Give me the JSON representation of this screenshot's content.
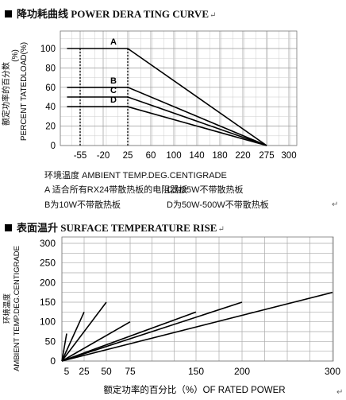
{
  "titles": {
    "derating": "降功耗曲线 POWER DERA TING CURVE",
    "surface": "表面温升 SURFACE TEMPERATURE RISE"
  },
  "notes": {
    "xlabel_ambient": "环境温度 AMBIENT TEMP.DEG.CENTIGRADE",
    "note_a": "A 适合所有RX24带散热板的电阻器板",
    "note_c": "C为25W不带散热板",
    "note_b": "B为10W不带散热板",
    "note_d": "D为50W-500W不带散热板"
  },
  "chart_data": [
    {
      "type": "line",
      "title": "降功耗曲线 POWER DERA TING CURVE",
      "xlabel": "环境温度 AMBIENT TEMP.DEG.CENTIGRADE",
      "ylabel": "额定功率的百分数 (%) PERCENT TATEDLOAD(%)",
      "ylabel_cn": "额定功率的百分数",
      "ylabel_en": "PERCENT TATEDLOAD(%)",
      "ylabel_unit": "(%)",
      "x_ticks": [
        -55,
        -20,
        25,
        60,
        100,
        140,
        180,
        220,
        275,
        300
      ],
      "y_ticks": [
        0,
        20,
        40,
        60,
        80,
        100
      ],
      "xlim": [
        -75,
        300
      ],
      "ylim": [
        0,
        115
      ],
      "grid": true,
      "dotted_x": [
        -55,
        25
      ],
      "series": [
        {
          "name": "A",
          "x": [
            -75,
            25,
            275
          ],
          "y": [
            100,
            100,
            0
          ]
        },
        {
          "name": "B",
          "x": [
            -75,
            25,
            275
          ],
          "y": [
            60,
            60,
            0
          ]
        },
        {
          "name": "C",
          "x": [
            -75,
            25,
            275
          ],
          "y": [
            50,
            50,
            0
          ]
        },
        {
          "name": "D",
          "x": [
            -75,
            25,
            275
          ],
          "y": [
            40,
            40,
            0
          ]
        }
      ]
    },
    {
      "type": "line",
      "title": "表面温升 SURFACE TEMPERATURE RISE",
      "xlabel": "额定功率的百分比（%）OF RATED POWER",
      "ylabel": "环境温度 AMBIENT TEMP.DEG.CENTIGRADE",
      "ylabel_cn": "环境温度",
      "ylabel_en": "AMBIENT TEMP.DEG.CENTIGRADE",
      "x_ticks": [
        5,
        25,
        50,
        75,
        150,
        200,
        300
      ],
      "y_ticks": [
        0,
        50,
        100,
        150,
        200,
        250,
        300
      ],
      "xlim": [
        0,
        300
      ],
      "ylim": [
        0,
        300
      ],
      "grid": true,
      "series": [
        {
          "x": [
            0,
            5
          ],
          "y": [
            0,
            70
          ]
        },
        {
          "x": [
            0,
            25
          ],
          "y": [
            0,
            125
          ]
        },
        {
          "x": [
            0,
            50
          ],
          "y": [
            0,
            150
          ]
        },
        {
          "x": [
            0,
            75
          ],
          "y": [
            0,
            100
          ]
        },
        {
          "x": [
            0,
            150
          ],
          "y": [
            0,
            125
          ]
        },
        {
          "x": [
            0,
            200
          ],
          "y": [
            0,
            150
          ]
        },
        {
          "x": [
            0,
            300
          ],
          "y": [
            0,
            175
          ]
        }
      ]
    }
  ]
}
